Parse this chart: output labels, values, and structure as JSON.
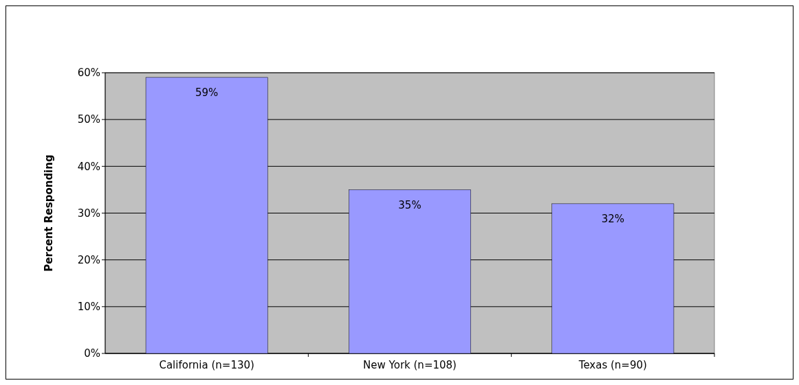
{
  "chart_data": {
    "type": "bar",
    "ylabel": "Percent Responding",
    "categories": [
      "California (n=130)",
      "New York (n=108)",
      "Texas (n=90)"
    ],
    "values": [
      59,
      35,
      32
    ],
    "color": "#9999ff",
    "value_labels": [
      "59%",
      "35%",
      "32%"
    ],
    "ylim": [
      0,
      60
    ],
    "yticks": [
      {
        "value": 0,
        "label": "0%"
      },
      {
        "value": 10,
        "label": "10%"
      },
      {
        "value": 20,
        "label": "20%"
      },
      {
        "value": 30,
        "label": "30%"
      },
      {
        "value": 40,
        "label": "40%"
      },
      {
        "value": 50,
        "label": "50%"
      },
      {
        "value": 60,
        "label": "60%"
      }
    ],
    "grid": "y"
  }
}
